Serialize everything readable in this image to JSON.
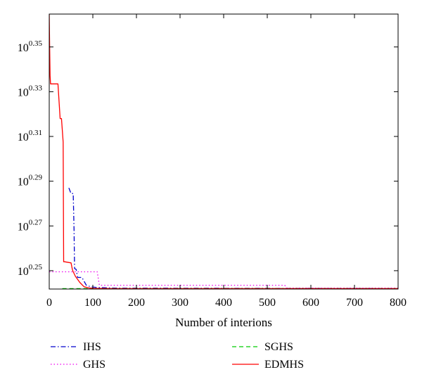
{
  "chart_data": {
    "type": "line",
    "title": "",
    "xlabel": "Number of interions",
    "ylabel": "",
    "xlim": [
      0,
      800
    ],
    "ylim": [
      0.2418,
      0.3647
    ],
    "yscale": "log10",
    "x_ticks": [
      "0",
      "100",
      "200",
      "300",
      "400",
      "500",
      "600",
      "700",
      "800"
    ],
    "y_ticks": [
      {
        "base": "10",
        "exp": "0.25",
        "value": 0.25
      },
      {
        "base": "10",
        "exp": "0.27",
        "value": 0.27
      },
      {
        "base": "10",
        "exp": "0.29",
        "value": 0.29
      },
      {
        "base": "10",
        "exp": "0.31",
        "value": 0.31
      },
      {
        "base": "10",
        "exp": "0.33",
        "value": 0.33
      },
      {
        "base": "10",
        "exp": "0.35",
        "value": 0.35
      }
    ],
    "grid": false,
    "legend": "bottom",
    "series": [
      {
        "name": "IHS",
        "color": "#0000cc",
        "dash": "dashdot",
        "x": [
          45,
          50,
          55,
          57,
          58,
          62,
          65,
          75,
          85,
          95,
          110,
          150,
          800
        ],
        "y": [
          0.287,
          0.2845,
          0.2845,
          0.268,
          0.251,
          0.2505,
          0.247,
          0.247,
          0.2435,
          0.2428,
          0.2425,
          0.2422,
          0.242
        ]
      },
      {
        "name": "GHS",
        "color": "#ee00ee",
        "dash": "dotted",
        "x": [
          0,
          105,
          110,
          115,
          540,
          545,
          800
        ],
        "y": [
          0.2495,
          0.2495,
          0.2495,
          0.2435,
          0.2435,
          0.2422,
          0.2422
        ]
      },
      {
        "name": "SGHS",
        "color": "#00cc00",
        "dash": "dashed",
        "x": [
          30,
          100,
          150,
          800
        ],
        "y": [
          0.242,
          0.242,
          0.242,
          0.242
        ]
      },
      {
        "name": "EDMHS",
        "color": "#ff0000",
        "dash": "solid",
        "x": [
          0,
          1,
          2,
          3,
          5,
          8,
          15,
          20,
          25,
          28,
          32,
          33,
          35,
          50,
          53,
          55,
          60,
          70,
          80,
          90,
          100,
          150,
          800
        ],
        "y": [
          0.3647,
          0.35,
          0.337,
          0.3335,
          0.3335,
          0.3335,
          0.3335,
          0.3335,
          0.318,
          0.318,
          0.3075,
          0.254,
          0.254,
          0.2535,
          0.2505,
          0.2495,
          0.2475,
          0.2448,
          0.2428,
          0.2423,
          0.2421,
          0.242,
          0.242
        ]
      }
    ]
  }
}
